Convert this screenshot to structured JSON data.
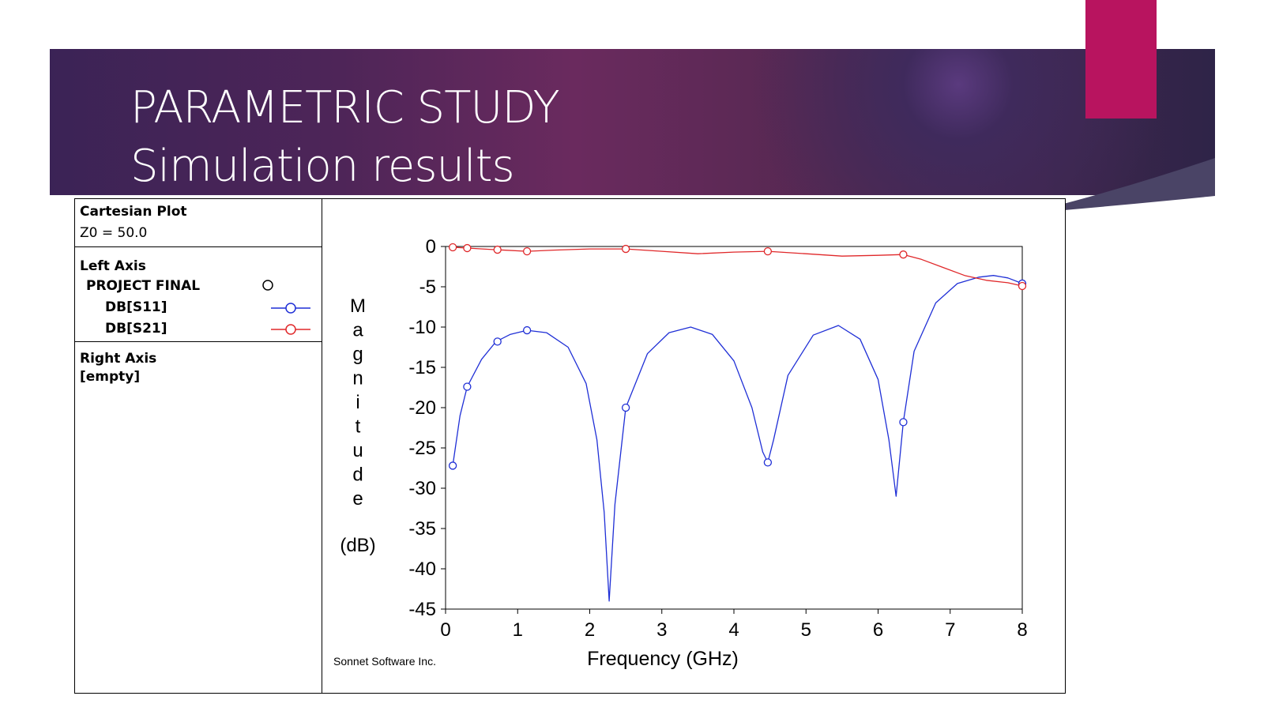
{
  "slide": {
    "title_line1": "PARAMETRIC STUDY",
    "title_line2": "Simulation results",
    "colors": {
      "banner": "#3b2356",
      "accent": "#b8145f"
    }
  },
  "legend": {
    "plot_type": "Cartesian Plot",
    "z0": "Z0 = 50.0",
    "left_axis_label": "Left Axis",
    "project": "PROJECT FINAL",
    "series": [
      {
        "name": "DB[S11]",
        "color": "#1f2fd6"
      },
      {
        "name": "DB[S21]",
        "color": "#e0282a"
      }
    ],
    "right_axis_label": "Right Axis",
    "right_axis_value": "[empty]"
  },
  "chart_data": {
    "type": "line",
    "title": "",
    "xlabel": "Frequency (GHz)",
    "ylabel_letters": [
      "M",
      "a",
      "g",
      "n",
      "i",
      "t",
      "u",
      "d",
      "e"
    ],
    "ylabel_unit": "(dB)",
    "xlim": [
      0,
      8
    ],
    "ylim": [
      -45,
      0
    ],
    "xticks": [
      0,
      1,
      2,
      3,
      4,
      5,
      6,
      7,
      8
    ],
    "yticks": [
      0,
      -5,
      -10,
      -15,
      -20,
      -25,
      -30,
      -35,
      -40,
      -45
    ],
    "credit": "Sonnet Software Inc.",
    "series": [
      {
        "name": "DB[S11]",
        "color": "#1f2fd6",
        "x": [
          0.1,
          0.2,
          0.3,
          0.5,
          0.7,
          0.9,
          1.13,
          1.4,
          1.7,
          1.95,
          2.1,
          2.2,
          2.27,
          2.35,
          2.5,
          2.8,
          3.1,
          3.4,
          3.7,
          4.0,
          4.25,
          4.4,
          4.47,
          4.55,
          4.75,
          5.1,
          5.45,
          5.75,
          6.0,
          6.15,
          6.25,
          6.35,
          6.5,
          6.8,
          7.1,
          7.4,
          7.6,
          7.8,
          8.0
        ],
        "y": [
          -27.2,
          -21,
          -17.4,
          -14,
          -11.8,
          -10.9,
          -10.4,
          -10.7,
          -12.5,
          -17,
          -24,
          -33,
          -44,
          -32,
          -20,
          -13.3,
          -10.7,
          -10,
          -10.9,
          -14.2,
          -20,
          -25.5,
          -26.8,
          -24,
          -16,
          -11,
          -9.8,
          -11.5,
          -16.5,
          -24,
          -31,
          -21.8,
          -13,
          -7,
          -4.6,
          -3.8,
          -3.6,
          -3.9,
          -4.6
        ]
      },
      {
        "name": "DB[S21]",
        "color": "#e0282a",
        "x": [
          0.1,
          0.3,
          0.7,
          1.13,
          1.5,
          2.0,
          2.5,
          3.0,
          3.5,
          4.0,
          4.47,
          5.0,
          5.5,
          6.0,
          6.35,
          6.6,
          6.9,
          7.2,
          7.5,
          7.8,
          8.0
        ],
        "y": [
          -0.1,
          -0.2,
          -0.4,
          -0.6,
          -0.45,
          -0.3,
          -0.3,
          -0.6,
          -0.9,
          -0.7,
          -0.6,
          -0.9,
          -1.2,
          -1.1,
          -1.0,
          -1.6,
          -2.6,
          -3.6,
          -4.2,
          -4.5,
          -4.9
        ]
      }
    ],
    "markers": [
      {
        "series": "DB[S11]",
        "x": [
          0.1,
          0.3,
          0.72,
          1.13,
          2.5,
          4.47,
          6.35,
          8.0
        ],
        "y": [
          -27.2,
          -17.4,
          -11.8,
          -10.4,
          -20,
          -26.8,
          -21.8,
          -4.6
        ]
      },
      {
        "series": "DB[S21]",
        "x": [
          0.1,
          0.3,
          0.72,
          1.13,
          2.5,
          4.47,
          6.35,
          8.0
        ],
        "y": [
          -0.1,
          -0.2,
          -0.4,
          -0.6,
          -0.3,
          -0.6,
          -1.0,
          -4.9
        ]
      }
    ]
  }
}
